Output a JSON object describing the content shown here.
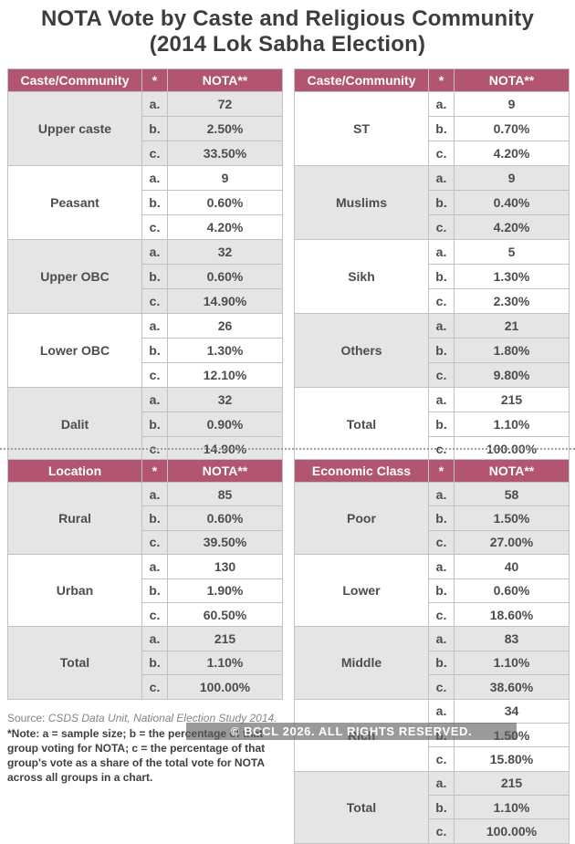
{
  "title": {
    "line1": "NOTA Vote by Caste and Religious Community",
    "line2": "(2014 Lok Sabha Election)"
  },
  "row_letters": [
    "a.",
    "b.",
    "c."
  ],
  "colors": {
    "header_bg": "#b15570",
    "header_text": "#ffffff",
    "shaded_bg": "#e5e5e5",
    "border": "#c2c2c2",
    "text": "#4d4d4d",
    "title_text": "#3d3d3d",
    "source_text": "#858585",
    "note_text": "#3f3f3f",
    "divider": "#9e9e9e",
    "watermark_bg": "rgba(92,92,92,0.62)",
    "watermark_text": "#ffffff"
  },
  "chart_data": {
    "type": "table",
    "title": "NOTA Vote by Caste and Religious Community (2014 Lok Sabha Election)",
    "legend": {
      "a": "sample size",
      "b": "percentage of that group voting for NOTA",
      "c": "percentage of that group's vote as a share of the total vote for NOTA across all groups in a chart"
    },
    "tables": [
      {
        "id": "caste-community-left",
        "columns": [
          "Caste/Community",
          "*",
          "NOTA**"
        ],
        "groups": [
          {
            "label": "Upper caste",
            "shaded": true,
            "values": [
              "72",
              "2.50%",
              "33.50%"
            ]
          },
          {
            "label": "Peasant",
            "shaded": false,
            "values": [
              "9",
              "0.60%",
              "4.20%"
            ]
          },
          {
            "label": "Upper OBC",
            "shaded": true,
            "values": [
              "32",
              "0.60%",
              "14.90%"
            ]
          },
          {
            "label": "Lower OBC",
            "shaded": false,
            "values": [
              "26",
              "1.30%",
              "12.10%"
            ]
          },
          {
            "label": "Dalit",
            "shaded": true,
            "values": [
              "32",
              "0.90%",
              "14.90%"
            ]
          }
        ]
      },
      {
        "id": "caste-community-right",
        "columns": [
          "Caste/Community",
          "*",
          "NOTA**"
        ],
        "groups": [
          {
            "label": "ST",
            "shaded": false,
            "values": [
              "9",
              "0.70%",
              "4.20%"
            ]
          },
          {
            "label": "Muslims",
            "shaded": true,
            "values": [
              "9",
              "0.40%",
              "4.20%"
            ]
          },
          {
            "label": "Sikh",
            "shaded": false,
            "values": [
              "5",
              "1.30%",
              "2.30%"
            ]
          },
          {
            "label": "Others",
            "shaded": true,
            "values": [
              "21",
              "1.80%",
              "9.80%"
            ]
          },
          {
            "label": "Total",
            "shaded": false,
            "values": [
              "215",
              "1.10%",
              "100.00%"
            ]
          }
        ]
      },
      {
        "id": "location",
        "columns": [
          "Location",
          "*",
          "NOTA**"
        ],
        "groups": [
          {
            "label": "Rural",
            "shaded": true,
            "values": [
              "85",
              "0.60%",
              "39.50%"
            ]
          },
          {
            "label": "Urban",
            "shaded": false,
            "values": [
              "130",
              "1.90%",
              "60.50%"
            ]
          },
          {
            "label": "Total",
            "shaded": true,
            "values": [
              "215",
              "1.10%",
              "100.00%"
            ]
          }
        ]
      },
      {
        "id": "economic-class",
        "columns": [
          "Economic Class",
          "*",
          "NOTA**"
        ],
        "groups": [
          {
            "label": "Poor",
            "shaded": true,
            "values": [
              "58",
              "1.50%",
              "27.00%"
            ]
          },
          {
            "label": "Lower",
            "shaded": false,
            "values": [
              "40",
              "0.60%",
              "18.60%"
            ]
          },
          {
            "label": "Middle",
            "shaded": true,
            "values": [
              "83",
              "1.10%",
              "38.60%"
            ]
          },
          {
            "label": "Rich",
            "shaded": false,
            "values": [
              "34",
              "1.50%",
              "15.80%"
            ]
          },
          {
            "label": "Total",
            "shaded": true,
            "values": [
              "215",
              "1.10%",
              "100.00%"
            ]
          }
        ]
      }
    ]
  },
  "footnote": {
    "source_label": "Source:",
    "source_text": "CSDS Data Unit, National Election Study 2014.",
    "note_text": "*Note: a = sample size; b = the percentage of that group voting for NOTA; c = the percentage of that group's vote as a share of the total vote for NOTA across all groups in a chart."
  },
  "watermark": "© BCCL 2026. ALL RIGHTS RESERVED."
}
